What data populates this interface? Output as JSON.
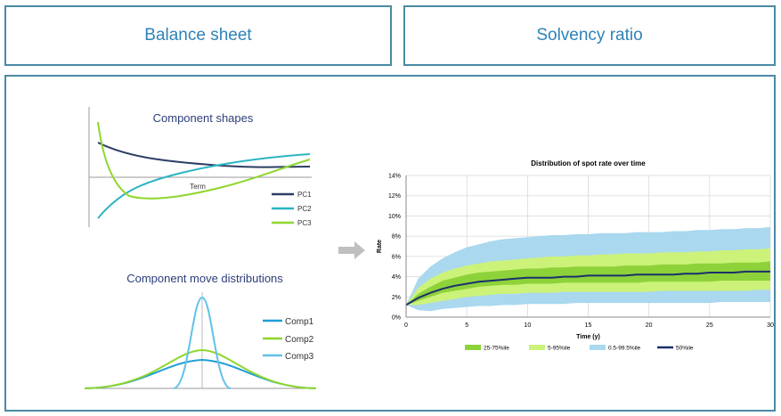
{
  "tabs": [
    {
      "label": "Balance sheet"
    },
    {
      "label": "Solvency ratio"
    }
  ],
  "component_shapes": {
    "title": "Component shapes",
    "axis_label": "Term",
    "legend": [
      "PC1",
      "PC2",
      "PC3"
    ],
    "colors": [
      "#2c3e63",
      "#2bb5c3",
      "#8fd62d"
    ]
  },
  "component_moves": {
    "title": "Component move distributions",
    "legend": [
      "Comp1",
      "Comp2",
      "Comp3"
    ],
    "colors": [
      "#1f9ed6",
      "#8fd62d",
      "#5fc2e6"
    ]
  },
  "chart_data": {
    "type": "area",
    "title": "Distribution of spot rate over time",
    "xlabel": "Time (y)",
    "ylabel": "Rate",
    "xlim": [
      0,
      30
    ],
    "ylim": [
      0,
      14
    ],
    "x_ticks": [
      0,
      5,
      10,
      15,
      20,
      25,
      30
    ],
    "y_ticks": [
      "0%",
      "2%",
      "4%",
      "6%",
      "8%",
      "10%",
      "12%",
      "14%"
    ],
    "grid": true,
    "legend_position": "bottom",
    "x": [
      0,
      1,
      2,
      3,
      4,
      5,
      6,
      7,
      8,
      9,
      10,
      11,
      12,
      13,
      14,
      15,
      16,
      17,
      18,
      19,
      20,
      21,
      22,
      23,
      24,
      25,
      26,
      27,
      28,
      29,
      30
    ],
    "series": [
      {
        "name": "0.5-99.5%ile",
        "color": "#a9d8ef",
        "lower": [
          1.2,
          0.7,
          0.6,
          0.8,
          0.9,
          1.0,
          1.1,
          1.1,
          1.2,
          1.2,
          1.3,
          1.3,
          1.3,
          1.3,
          1.4,
          1.4,
          1.4,
          1.4,
          1.4,
          1.4,
          1.4,
          1.4,
          1.4,
          1.4,
          1.4,
          1.4,
          1.5,
          1.5,
          1.5,
          1.5,
          1.5
        ],
        "upper": [
          1.2,
          3.8,
          5.0,
          5.8,
          6.4,
          6.9,
          7.2,
          7.5,
          7.7,
          7.8,
          7.9,
          8.0,
          8.1,
          8.1,
          8.2,
          8.2,
          8.3,
          8.3,
          8.3,
          8.4,
          8.4,
          8.4,
          8.5,
          8.5,
          8.6,
          8.6,
          8.7,
          8.7,
          8.8,
          8.8,
          8.9
        ]
      },
      {
        "name": "5-95%ile",
        "color": "#ccf27a",
        "lower": [
          1.2,
          1.2,
          1.4,
          1.6,
          1.8,
          2.0,
          2.1,
          2.2,
          2.3,
          2.3,
          2.4,
          2.4,
          2.4,
          2.5,
          2.5,
          2.5,
          2.5,
          2.5,
          2.5,
          2.5,
          2.5,
          2.6,
          2.6,
          2.6,
          2.6,
          2.6,
          2.6,
          2.6,
          2.6,
          2.7,
          2.7
        ],
        "upper": [
          1.2,
          2.9,
          3.8,
          4.4,
          4.8,
          5.1,
          5.3,
          5.5,
          5.6,
          5.7,
          5.8,
          5.9,
          6.0,
          6.0,
          6.1,
          6.1,
          6.2,
          6.2,
          6.3,
          6.3,
          6.3,
          6.4,
          6.4,
          6.4,
          6.5,
          6.5,
          6.6,
          6.6,
          6.7,
          6.7,
          6.8
        ]
      },
      {
        "name": "25-75%ile",
        "color": "#8ed23a",
        "lower": [
          1.2,
          1.6,
          2.0,
          2.4,
          2.6,
          2.8,
          3.0,
          3.1,
          3.2,
          3.2,
          3.3,
          3.3,
          3.3,
          3.4,
          3.4,
          3.4,
          3.4,
          3.4,
          3.4,
          3.4,
          3.5,
          3.5,
          3.5,
          3.5,
          3.5,
          3.5,
          3.6,
          3.6,
          3.6,
          3.6,
          3.6
        ],
        "upper": [
          1.2,
          2.3,
          3.0,
          3.6,
          3.9,
          4.2,
          4.4,
          4.5,
          4.6,
          4.7,
          4.8,
          4.8,
          4.9,
          4.9,
          5.0,
          5.0,
          5.0,
          5.0,
          5.1,
          5.1,
          5.1,
          5.2,
          5.2,
          5.2,
          5.3,
          5.3,
          5.3,
          5.4,
          5.4,
          5.4,
          5.5
        ]
      },
      {
        "name": "50%ile",
        "color": "#1b2f6b",
        "values": [
          1.2,
          1.9,
          2.4,
          2.8,
          3.1,
          3.3,
          3.5,
          3.6,
          3.7,
          3.8,
          3.9,
          3.9,
          3.9,
          4.0,
          4.0,
          4.1,
          4.1,
          4.1,
          4.1,
          4.2,
          4.2,
          4.2,
          4.2,
          4.3,
          4.3,
          4.4,
          4.4,
          4.4,
          4.5,
          4.5,
          4.5
        ]
      }
    ]
  }
}
